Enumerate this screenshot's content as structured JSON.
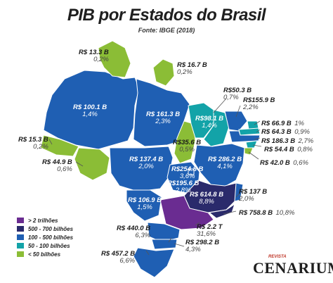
{
  "title": "PIB por Estados do Brasil",
  "source": "Fonte: IBGE (2018)",
  "colors": {
    "purple": "#6a2c91",
    "navy": "#2a2a6b",
    "blue": "#1f5fb3",
    "teal": "#13a3a8",
    "green": "#8bbd36"
  },
  "legend": [
    {
      "label": "> 2 trilhões",
      "color": "#6a2c91"
    },
    {
      "label": "500 - 700 bilhões",
      "color": "#2a2a6b"
    },
    {
      "label": "100 - 500 bilhões",
      "color": "#1f5fb3"
    },
    {
      "label": "50 - 100 bilhões",
      "color": "#13a3a8"
    },
    {
      "label": "< 50 bilhões",
      "color": "#8bbd36"
    }
  ],
  "states": {
    "rr": {
      "value": "R$ 13.3 B",
      "pct": "0,2%"
    },
    "ap": {
      "value": "R$ 16.7 B",
      "pct": "0,2%"
    },
    "am": {
      "value": "R$ 100.1 B",
      "pct": "1,4%"
    },
    "pa": {
      "value": "R$ 161.3 B",
      "pct": "2,3%"
    },
    "ma": {
      "value": "R$98.1 B",
      "pct": "1,4%"
    },
    "pi": {
      "value": "R$50.3 B",
      "pct": "0,7%"
    },
    "ce": {
      "value": "R$155.9 B",
      "pct": "2,2%"
    },
    "rn": {
      "value": "R$ 66.9 B",
      "pct": "1%"
    },
    "pb": {
      "value": "R$ 64.3 B",
      "pct": "0,9%"
    },
    "pe": {
      "value": "R$ 186.3 B",
      "pct": "2,7%"
    },
    "al": {
      "value": "R$ 54.4 B",
      "pct": "0,8%"
    },
    "se": {
      "value": "R$ 42.0 B",
      "pct": "0,6%"
    },
    "ac": {
      "value": "R$ 15.3 B",
      "pct": "0,2%"
    },
    "ro": {
      "value": "R$ 44.9 B",
      "pct": "0,6%"
    },
    "to": {
      "value": "R$35.6 B",
      "pct": "0,5%"
    },
    "mt": {
      "value": "R$ 137.4 B",
      "pct": "2,0%"
    },
    "ba": {
      "value": "R$ 286.2 B",
      "pct": "4,1%"
    },
    "df": {
      "value": "R$254.8 B",
      "pct": "3,6%"
    },
    "go": {
      "value": "R$195.6 B",
      "pct": "2,8%"
    },
    "mg": {
      "value": "R$ 614.8 B",
      "pct": "8,8%"
    },
    "es": {
      "value": "R$ 137 B",
      "pct": "2,0%"
    },
    "ms": {
      "value": "R$ 106.9 B",
      "pct": "1,5%"
    },
    "rj": {
      "value": "R$ 758.8 B",
      "pct": "10,8%"
    },
    "pr": {
      "value": "R$ 440.0 B",
      "pct": "6,3%"
    },
    "sp": {
      "value": "R$ 2.2 T",
      "pct": "31,6%"
    },
    "sc": {
      "value": "R$ 298.2 B",
      "pct": "4,3%"
    },
    "rs": {
      "value": "R$ 457.2 B",
      "pct": "6,6%"
    }
  },
  "brand": {
    "small": "REVISTA",
    "big": "CENARIUM"
  }
}
